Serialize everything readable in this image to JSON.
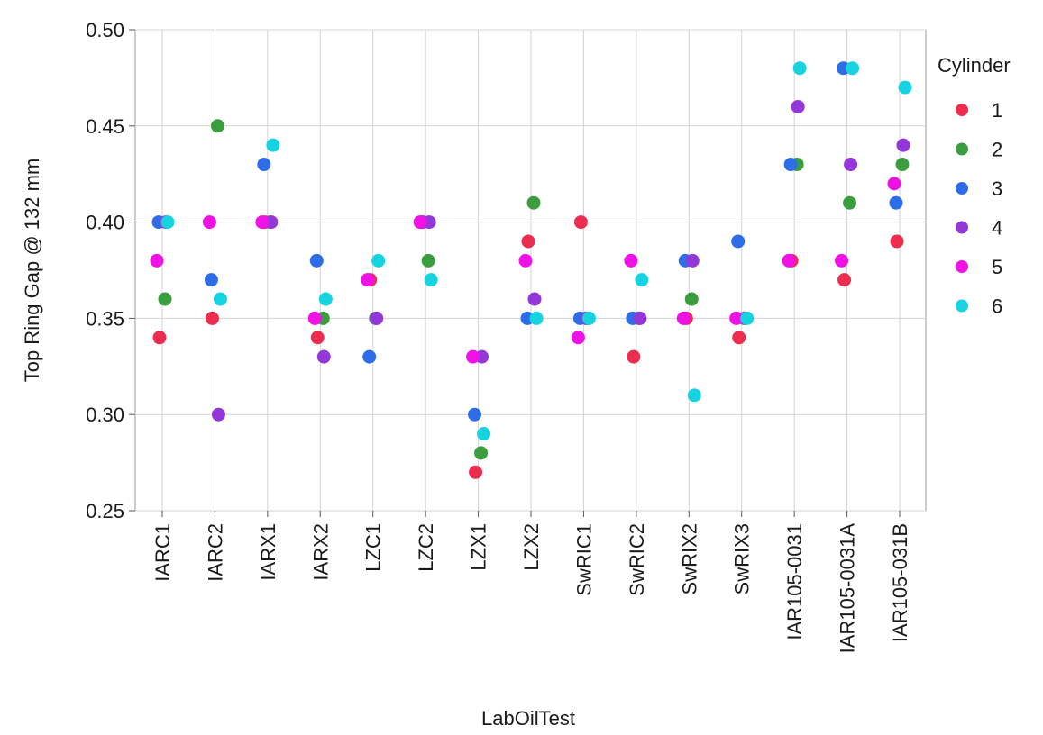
{
  "chart_data": {
    "type": "scatter",
    "title": "",
    "xlabel": "LabOilTest",
    "ylabel": "Top Ring Gap @ 132 mm",
    "ylim": [
      0.25,
      0.5
    ],
    "yticks": [
      "0.25",
      "0.30",
      "0.35",
      "0.40",
      "0.45",
      "0.50"
    ],
    "grid": true,
    "legend_title": "Cylinder",
    "legend_position": "right",
    "categories": [
      "IARC1",
      "IARC2",
      "IARX1",
      "IARX2",
      "LZC1",
      "LZC2",
      "LZX1",
      "LZX2",
      "SwRIC1",
      "SwRIC2",
      "SwRIX2",
      "SwRIX3",
      "IAR105-0031",
      "IAR105-0031A",
      "IAR105-031B"
    ],
    "series": [
      {
        "name": "1",
        "color": "#ed2d4f",
        "values": [
          0.34,
          0.35,
          0.4,
          0.34,
          0.37,
          0.4,
          0.27,
          0.39,
          0.4,
          0.33,
          0.35,
          0.34,
          0.38,
          0.37,
          0.39
        ]
      },
      {
        "name": "2",
        "color": "#3a9e3e",
        "values": [
          0.36,
          0.45,
          0.4,
          0.35,
          0.35,
          0.38,
          0.28,
          0.41,
          0.35,
          0.35,
          0.36,
          0.35,
          0.43,
          0.41,
          0.43
        ]
      },
      {
        "name": "3",
        "color": "#2d6de8",
        "values": [
          0.4,
          0.37,
          0.43,
          0.38,
          0.33,
          0.4,
          0.3,
          0.35,
          0.35,
          0.35,
          0.38,
          0.39,
          0.43,
          0.48,
          0.41
        ]
      },
      {
        "name": "4",
        "color": "#9437d8",
        "values": [
          0.4,
          0.3,
          0.4,
          0.33,
          0.35,
          0.4,
          0.33,
          0.36,
          0.35,
          0.35,
          0.38,
          0.35,
          0.46,
          0.43,
          0.44
        ]
      },
      {
        "name": "5",
        "color": "#f012e5",
        "values": [
          0.38,
          0.4,
          0.4,
          0.35,
          0.37,
          0.4,
          0.33,
          0.38,
          0.34,
          0.38,
          0.35,
          0.35,
          0.38,
          0.38,
          0.42
        ]
      },
      {
        "name": "6",
        "color": "#16d3e0",
        "values": [
          0.4,
          0.36,
          0.44,
          0.36,
          0.38,
          0.37,
          0.29,
          0.35,
          0.35,
          0.37,
          0.31,
          0.35,
          0.48,
          0.48,
          0.47
        ]
      }
    ]
  }
}
